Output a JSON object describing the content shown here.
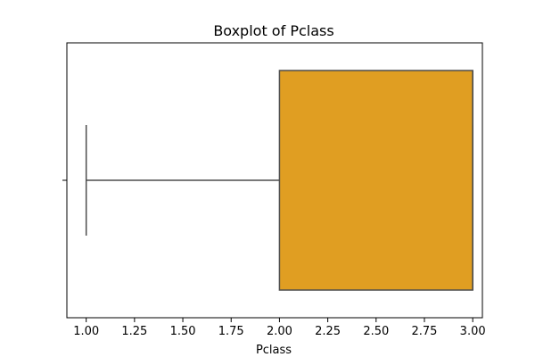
{
  "chart_data": {
    "type": "boxplot",
    "title": "Boxplot of Pclass",
    "xlabel": "Pclass",
    "ylabel": "",
    "orientation": "horizontal",
    "xlim": [
      0.9,
      3.05
    ],
    "x_ticks": [
      1.0,
      1.25,
      1.5,
      1.75,
      2.0,
      2.25,
      2.5,
      2.75,
      3.0
    ],
    "x_tick_labels": [
      "1.00",
      "1.25",
      "1.50",
      "1.75",
      "2.00",
      "2.25",
      "2.50",
      "2.75",
      "3.00"
    ],
    "boxes": [
      {
        "whisker_low": 1.0,
        "q1": 2.0,
        "median": 3.0,
        "q3": 3.0,
        "whisker_high": 3.0
      }
    ],
    "grid": false,
    "colors": {
      "box_fill": "#e09e22",
      "box_edge": "#4d4d4d",
      "whisker": "#4d4d4d",
      "axis": "#000000",
      "background": "#ffffff"
    }
  }
}
